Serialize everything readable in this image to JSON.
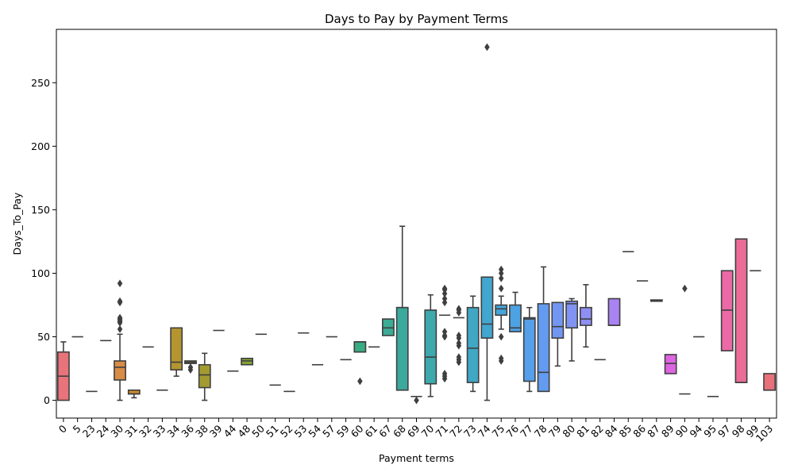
{
  "chart_data": {
    "type": "box",
    "title": "Days to Pay by Payment Terms",
    "xlabel": "Payment terms",
    "ylabel": "Days_To_Pay",
    "ylim": [
      -14,
      292
    ],
    "yticks": [
      0,
      50,
      100,
      150,
      200,
      250
    ],
    "grid": false,
    "legend": "none",
    "categories": [
      "0",
      "5",
      "23",
      "24",
      "30",
      "31",
      "32",
      "33",
      "34",
      "36",
      "38",
      "39",
      "44",
      "48",
      "50",
      "51",
      "52",
      "53",
      "54",
      "57",
      "59",
      "60",
      "61",
      "67",
      "68",
      "69",
      "70",
      "71",
      "72",
      "73",
      "74",
      "75",
      "76",
      "77",
      "78",
      "79",
      "80",
      "81",
      "82",
      "84",
      "85",
      "86",
      "87",
      "89",
      "90",
      "94",
      "95",
      "97",
      "98",
      "99",
      "103"
    ],
    "box_colors": [
      "#e8737b",
      "#e27a62",
      "#db7f3f",
      "#d3842c",
      "#d98c45",
      "#cc8a2c",
      "#c38e2c",
      "#bb922d",
      "#b4952f",
      "#ab9831",
      "#a39b32",
      "#9a9e32",
      "#90a132",
      "#85a432",
      "#79a633",
      "#6ba934",
      "#5bac34",
      "#44ae3a",
      "#36ae5a",
      "#36ad6b",
      "#37ad78",
      "#38ac83",
      "#39ac8c",
      "#3aab95",
      "#3baa9d",
      "#3caaa4",
      "#3da9ac",
      "#3ea9b4",
      "#3fa8bc",
      "#40a7c5",
      "#42a6cf",
      "#46a4d9",
      "#4ca2e2",
      "#569feb",
      "#639bf1",
      "#7297f2",
      "#8193f2",
      "#8f8ef2",
      "#9c88f2",
      "#aa83f2",
      "#b87cf1",
      "#c574ef",
      "#d26ce9",
      "#dd65e1",
      "#e461d2",
      "#e863c4",
      "#eb66b5",
      "#eb69a6",
      "#ea6c97",
      "#e96f88",
      "#e8717b"
    ],
    "boxes": [
      {
        "category": "0",
        "whisker_low": 0,
        "q1": 0,
        "median": 19,
        "q3": 38,
        "whisker_high": 46,
        "outliers": []
      },
      {
        "category": "5",
        "whisker_low": 50,
        "q1": 50,
        "median": 50,
        "q3": 50,
        "whisker_high": 50,
        "outliers": []
      },
      {
        "category": "23",
        "whisker_low": 7,
        "q1": 7,
        "median": 7,
        "q3": 7,
        "whisker_high": 7,
        "outliers": []
      },
      {
        "category": "24",
        "whisker_low": 47,
        "q1": 47,
        "median": 47,
        "q3": 47,
        "whisker_high": 47,
        "outliers": []
      },
      {
        "category": "30",
        "whisker_low": 0,
        "q1": 16,
        "median": 26,
        "q3": 31,
        "whisker_high": 52,
        "outliers": [
          56,
          61,
          62,
          63,
          64,
          65,
          77,
          78,
          92
        ]
      },
      {
        "category": "31",
        "whisker_low": 2,
        "q1": 5,
        "median": 5,
        "q3": 8,
        "whisker_high": 8,
        "outliers": []
      },
      {
        "category": "32",
        "whisker_low": 42,
        "q1": 42,
        "median": 42,
        "q3": 42,
        "whisker_high": 42,
        "outliers": []
      },
      {
        "category": "33",
        "whisker_low": 8,
        "q1": 8,
        "median": 8,
        "q3": 8,
        "whisker_high": 8,
        "outliers": []
      },
      {
        "category": "34",
        "whisker_low": 19,
        "q1": 24,
        "median": 30,
        "q3": 57,
        "whisker_high": 57,
        "outliers": []
      },
      {
        "category": "36",
        "whisker_low": 29,
        "q1": 29,
        "median": 30,
        "q3": 31,
        "whisker_high": 31,
        "outliers": [
          24,
          26
        ]
      },
      {
        "category": "38",
        "whisker_low": 0,
        "q1": 10,
        "median": 20,
        "q3": 28,
        "whisker_high": 37,
        "outliers": []
      },
      {
        "category": "39",
        "whisker_low": 55,
        "q1": 55,
        "median": 55,
        "q3": 55,
        "whisker_high": 55,
        "outliers": []
      },
      {
        "category": "44",
        "whisker_low": 23,
        "q1": 23,
        "median": 23,
        "q3": 23,
        "whisker_high": 23,
        "outliers": []
      },
      {
        "category": "48",
        "whisker_low": 28,
        "q1": 28,
        "median": 31,
        "q3": 33,
        "whisker_high": 33,
        "outliers": []
      },
      {
        "category": "50",
        "whisker_low": 52,
        "q1": 52,
        "median": 52,
        "q3": 52,
        "whisker_high": 52,
        "outliers": []
      },
      {
        "category": "51",
        "whisker_low": 12,
        "q1": 12,
        "median": 12,
        "q3": 12,
        "whisker_high": 12,
        "outliers": []
      },
      {
        "category": "52",
        "whisker_low": 7,
        "q1": 7,
        "median": 7,
        "q3": 7,
        "whisker_high": 7,
        "outliers": []
      },
      {
        "category": "53",
        "whisker_low": 53,
        "q1": 53,
        "median": 53,
        "q3": 53,
        "whisker_high": 53,
        "outliers": []
      },
      {
        "category": "54",
        "whisker_low": 28,
        "q1": 28,
        "median": 28,
        "q3": 28,
        "whisker_high": 28,
        "outliers": []
      },
      {
        "category": "57",
        "whisker_low": 50,
        "q1": 50,
        "median": 50,
        "q3": 50,
        "whisker_high": 50,
        "outliers": []
      },
      {
        "category": "59",
        "whisker_low": 32,
        "q1": 32,
        "median": 32,
        "q3": 32,
        "whisker_high": 32,
        "outliers": []
      },
      {
        "category": "60",
        "whisker_low": 38,
        "q1": 38,
        "median": 46,
        "q3": 46,
        "whisker_high": 46,
        "outliers": [
          15
        ]
      },
      {
        "category": "61",
        "whisker_low": 42,
        "q1": 42,
        "median": 42,
        "q3": 42,
        "whisker_high": 42,
        "outliers": []
      },
      {
        "category": "67",
        "whisker_low": 51,
        "q1": 51,
        "median": 57,
        "q3": 64,
        "whisker_high": 64,
        "outliers": []
      },
      {
        "category": "68",
        "whisker_low": 8,
        "q1": 8,
        "median": 73,
        "q3": 73,
        "whisker_high": 137,
        "outliers": []
      },
      {
        "category": "69",
        "whisker_low": 3,
        "q1": 3,
        "median": 3,
        "q3": 3,
        "whisker_high": 3,
        "outliers": [
          0
        ]
      },
      {
        "category": "70",
        "whisker_low": 3,
        "q1": 13,
        "median": 34,
        "q3": 71,
        "whisker_high": 83,
        "outliers": []
      },
      {
        "category": "71",
        "whisker_low": 67,
        "q1": 67,
        "median": 67,
        "q3": 67,
        "whisker_high": 67,
        "outliers": [
          17,
          19,
          21,
          50,
          51,
          54,
          77,
          80,
          84,
          87,
          88
        ]
      },
      {
        "category": "72",
        "whisker_low": 65,
        "q1": 65,
        "median": 65,
        "q3": 65,
        "whisker_high": 65,
        "outliers": [
          30,
          32,
          34,
          43,
          45,
          49,
          51,
          69,
          71,
          72
        ]
      },
      {
        "category": "73",
        "whisker_low": 7,
        "q1": 14,
        "median": 41,
        "q3": 73,
        "whisker_high": 82,
        "outliers": []
      },
      {
        "category": "74",
        "whisker_low": 0,
        "q1": 49,
        "median": 60,
        "q3": 97,
        "whisker_high": 97,
        "outliers": [
          278
        ]
      },
      {
        "category": "75",
        "whisker_low": 56,
        "q1": 67,
        "median": 72,
        "q3": 75,
        "whisker_high": 82,
        "outliers": [
          31,
          33,
          50,
          88,
          96,
          100,
          103
        ]
      },
      {
        "category": "76",
        "whisker_low": 54,
        "q1": 54,
        "median": 57,
        "q3": 75,
        "whisker_high": 85,
        "outliers": []
      },
      {
        "category": "77",
        "whisker_low": 7,
        "q1": 15,
        "median": 64,
        "q3": 65,
        "whisker_high": 73,
        "outliers": []
      },
      {
        "category": "78",
        "whisker_low": 7,
        "q1": 7,
        "median": 22,
        "q3": 76,
        "whisker_high": 105,
        "outliers": []
      },
      {
        "category": "79",
        "whisker_low": 27,
        "q1": 49,
        "median": 58,
        "q3": 77,
        "whisker_high": 77,
        "outliers": []
      },
      {
        "category": "80",
        "whisker_low": 31,
        "q1": 57,
        "median": 76,
        "q3": 78,
        "whisker_high": 80,
        "outliers": []
      },
      {
        "category": "81",
        "whisker_low": 42,
        "q1": 59,
        "median": 64,
        "q3": 73,
        "whisker_high": 91,
        "outliers": []
      },
      {
        "category": "82",
        "whisker_low": 32,
        "q1": 32,
        "median": 32,
        "q3": 32,
        "whisker_high": 32,
        "outliers": []
      },
      {
        "category": "84",
        "whisker_low": 59,
        "q1": 59,
        "median": 59,
        "q3": 80,
        "whisker_high": 80,
        "outliers": []
      },
      {
        "category": "85",
        "whisker_low": 117,
        "q1": 117,
        "median": 117,
        "q3": 117,
        "whisker_high": 117,
        "outliers": []
      },
      {
        "category": "86",
        "whisker_low": 94,
        "q1": 94,
        "median": 94,
        "q3": 94,
        "whisker_high": 94,
        "outliers": []
      },
      {
        "category": "87",
        "whisker_low": 78,
        "q1": 78,
        "median": 78,
        "q3": 79,
        "whisker_high": 79,
        "outliers": []
      },
      {
        "category": "89",
        "whisker_low": 21,
        "q1": 21,
        "median": 29,
        "q3": 36,
        "whisker_high": 36,
        "outliers": []
      },
      {
        "category": "90",
        "whisker_low": 5,
        "q1": 5,
        "median": 5,
        "q3": 5,
        "whisker_high": 5,
        "outliers": [
          88
        ]
      },
      {
        "category": "94",
        "whisker_low": 50,
        "q1": 50,
        "median": 50,
        "q3": 50,
        "whisker_high": 50,
        "outliers": []
      },
      {
        "category": "95",
        "whisker_low": 3,
        "q1": 3,
        "median": 3,
        "q3": 3,
        "whisker_high": 3,
        "outliers": []
      },
      {
        "category": "97",
        "whisker_low": 39,
        "q1": 39,
        "median": 71,
        "q3": 102,
        "whisker_high": 102,
        "outliers": []
      },
      {
        "category": "98",
        "whisker_low": 14,
        "q1": 14,
        "median": 14,
        "q3": 127,
        "whisker_high": 127,
        "outliers": []
      },
      {
        "category": "99",
        "whisker_low": 102,
        "q1": 102,
        "median": 102,
        "q3": 102,
        "whisker_high": 102,
        "outliers": []
      },
      {
        "category": "103",
        "whisker_low": 8,
        "q1": 8,
        "median": 8,
        "q3": 21,
        "whisker_high": 21,
        "outliers": []
      }
    ]
  }
}
